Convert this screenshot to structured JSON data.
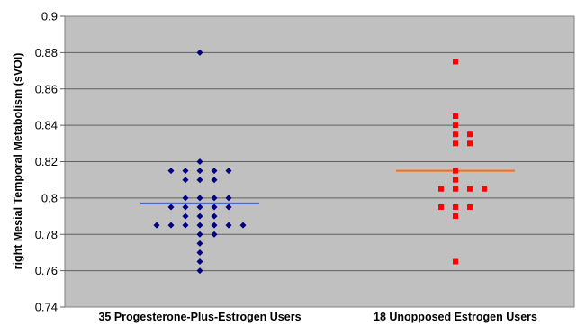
{
  "chart_data": {
    "type": "scatter",
    "title": "",
    "ylabel": "right Mesial Temporal Metabolism (sVOI)",
    "ylim": [
      0.74,
      0.9
    ],
    "yticks": [
      0.74,
      0.76,
      0.78,
      0.8,
      0.82,
      0.84,
      0.86,
      0.88,
      0.9
    ],
    "ytick_labels": [
      "0.74",
      "0.76",
      "0.78",
      "0.8",
      "0.82",
      "0.84",
      "0.86",
      "0.88",
      "0.9"
    ],
    "grid": true,
    "background_color": "#c0c0c0",
    "categories": [
      "35 Progesterone-Plus-Estrogen Users",
      "18 Unopposed Estrogen Users"
    ],
    "series": [
      {
        "category": "35 Progesterone-Plus-Estrogen Users",
        "marker": "diamond",
        "color": "#000080",
        "mean": 0.797,
        "mean_color": "#3366ff",
        "points": [
          {
            "y": 0.88,
            "offset": 0
          },
          {
            "y": 0.82,
            "offset": 0
          },
          {
            "y": 0.815,
            "offset": -2
          },
          {
            "y": 0.815,
            "offset": -1
          },
          {
            "y": 0.815,
            "offset": 0
          },
          {
            "y": 0.815,
            "offset": 1
          },
          {
            "y": 0.815,
            "offset": 2
          },
          {
            "y": 0.81,
            "offset": -1
          },
          {
            "y": 0.81,
            "offset": 0
          },
          {
            "y": 0.81,
            "offset": 1
          },
          {
            "y": 0.8,
            "offset": -1
          },
          {
            "y": 0.8,
            "offset": 0
          },
          {
            "y": 0.8,
            "offset": 1
          },
          {
            "y": 0.8,
            "offset": 2
          },
          {
            "y": 0.795,
            "offset": -2
          },
          {
            "y": 0.795,
            "offset": -1
          },
          {
            "y": 0.795,
            "offset": 0
          },
          {
            "y": 0.795,
            "offset": 1
          },
          {
            "y": 0.795,
            "offset": 2
          },
          {
            "y": 0.79,
            "offset": -1
          },
          {
            "y": 0.79,
            "offset": 0
          },
          {
            "y": 0.79,
            "offset": 1
          },
          {
            "y": 0.785,
            "offset": -3
          },
          {
            "y": 0.785,
            "offset": -2
          },
          {
            "y": 0.785,
            "offset": -1
          },
          {
            "y": 0.785,
            "offset": 0
          },
          {
            "y": 0.785,
            "offset": 1
          },
          {
            "y": 0.785,
            "offset": 2
          },
          {
            "y": 0.785,
            "offset": 3
          },
          {
            "y": 0.78,
            "offset": 0
          },
          {
            "y": 0.78,
            "offset": 1
          },
          {
            "y": 0.775,
            "offset": 0
          },
          {
            "y": 0.77,
            "offset": 0
          },
          {
            "y": 0.765,
            "offset": 0
          },
          {
            "y": 0.76,
            "offset": 0
          }
        ]
      },
      {
        "category": "18 Unopposed Estrogen Users",
        "marker": "square",
        "color": "#ff0000",
        "mean": 0.815,
        "mean_color": "#ff6a13",
        "points": [
          {
            "y": 0.875,
            "offset": 0
          },
          {
            "y": 0.845,
            "offset": 0
          },
          {
            "y": 0.84,
            "offset": 0
          },
          {
            "y": 0.835,
            "offset": 0
          },
          {
            "y": 0.835,
            "offset": 1
          },
          {
            "y": 0.83,
            "offset": 0
          },
          {
            "y": 0.83,
            "offset": 1
          },
          {
            "y": 0.815,
            "offset": 0
          },
          {
            "y": 0.81,
            "offset": 0
          },
          {
            "y": 0.805,
            "offset": -1
          },
          {
            "y": 0.805,
            "offset": 0
          },
          {
            "y": 0.805,
            "offset": 1
          },
          {
            "y": 0.805,
            "offset": 2
          },
          {
            "y": 0.795,
            "offset": -1
          },
          {
            "y": 0.795,
            "offset": 0
          },
          {
            "y": 0.795,
            "offset": 1
          },
          {
            "y": 0.79,
            "offset": 0
          },
          {
            "y": 0.765,
            "offset": 0
          }
        ]
      }
    ]
  }
}
